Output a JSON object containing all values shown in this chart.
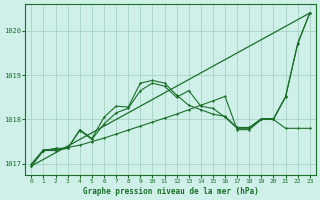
{
  "background_color": "#cff0e8",
  "grid_color": "#a0ccbe",
  "line_color": "#1a6e2a",
  "title": "Graphe pression niveau de la mer (hPa)",
  "xlim": [
    -0.5,
    23.5
  ],
  "ylim": [
    1016.75,
    1020.6
  ],
  "yticks": [
    1017,
    1018,
    1019,
    1020
  ],
  "xticks": [
    0,
    1,
    2,
    3,
    4,
    5,
    6,
    7,
    8,
    9,
    10,
    11,
    12,
    13,
    14,
    15,
    16,
    17,
    18,
    19,
    20,
    21,
    22,
    23
  ],
  "straight_line": [
    [
      0,
      1016.95
    ],
    [
      23,
      1020.4
    ]
  ],
  "series": [
    [
      1016.95,
      1017.3,
      1017.3,
      1017.35,
      1017.75,
      1017.55,
      1017.9,
      1018.15,
      1018.25,
      1018.65,
      1018.82,
      1018.75,
      1018.5,
      1018.65,
      1018.3,
      1018.25,
      1018.05,
      1017.8,
      1017.8,
      1018.0,
      1018.0,
      1018.5,
      1019.7,
      1020.4
    ],
    [
      1016.95,
      1017.3,
      1017.35,
      1017.35,
      1017.77,
      1017.57,
      1018.05,
      1018.3,
      1018.28,
      1018.82,
      1018.88,
      1018.82,
      1018.55,
      1018.32,
      1018.22,
      1018.12,
      1018.07,
      1017.82,
      1017.82,
      1018.02,
      1018.02,
      1018.52,
      1019.72,
      1020.4
    ],
    [
      1017.0,
      1017.32,
      1017.32,
      1017.37,
      1017.42,
      1017.5,
      1017.58,
      1017.67,
      1017.76,
      1017.85,
      1017.94,
      1018.03,
      1018.12,
      1018.22,
      1018.32,
      1018.42,
      1018.52,
      1017.77,
      1017.77,
      1018.0,
      1018.0,
      1017.8,
      1017.8,
      1017.8
    ]
  ]
}
